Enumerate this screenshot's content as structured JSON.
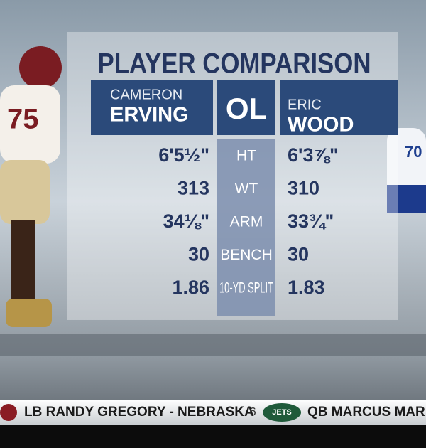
{
  "title": "PLAYER COMPARISON",
  "left_player": {
    "first": "CAMERON",
    "last": "ERVING"
  },
  "position": "OL",
  "right_player": {
    "first": "ERIC",
    "last": "WOOD"
  },
  "rows": [
    [
      "6'5½\"",
      "HT",
      "6'3⅞\""
    ],
    [
      "313",
      "WT",
      "310"
    ],
    [
      "34⅛\"",
      "ARM",
      "33¾\""
    ],
    [
      "30",
      "BENCH",
      "30"
    ],
    [
      "1.86",
      "10-YD SPLIT",
      "1.83"
    ]
  ],
  "ticker": {
    "left": "LB RANDY GREGORY - NEBRASKA",
    "pick": "6",
    "logo": "JETS",
    "right": "QB MARCUS MARIO"
  }
}
